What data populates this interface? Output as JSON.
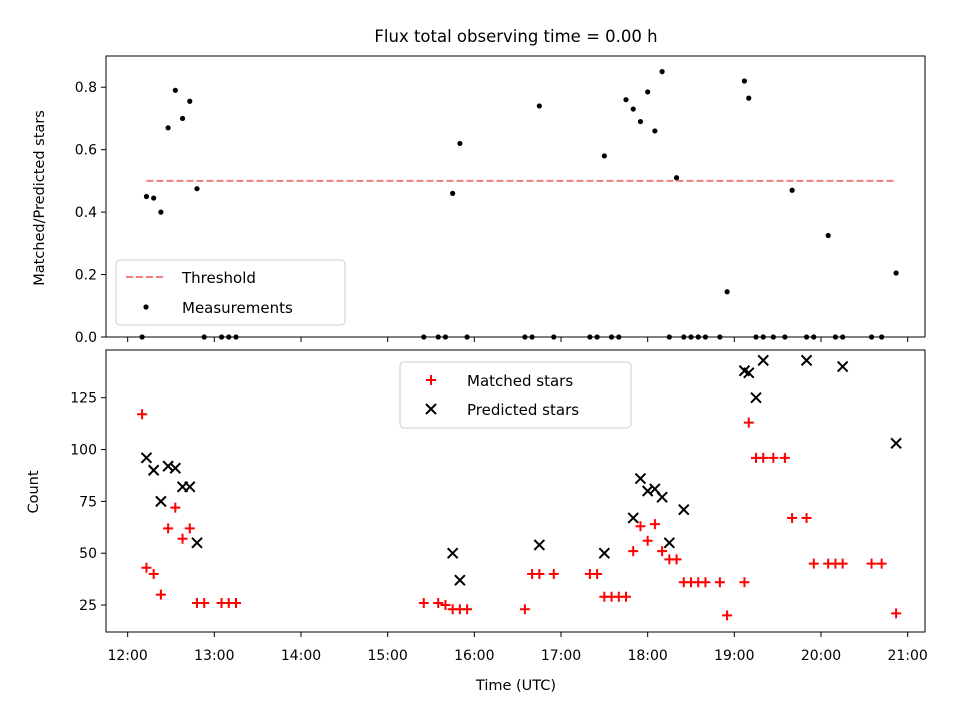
{
  "chart_data": [
    {
      "type": "scatter",
      "title": "Flux total observing time = 0.00 h",
      "xlabel": "",
      "ylabel": "Matched/Predicted stars",
      "xlim": [
        "11:45",
        "21:12"
      ],
      "ylim": [
        0,
        0.9
      ],
      "y_ticks": [
        0.0,
        0.2,
        0.4,
        0.6,
        0.8
      ],
      "y_tick_labels": [
        "0.0",
        "0.2",
        "0.4",
        "0.6",
        "0.8"
      ],
      "x_ticks": [
        "12:00",
        "13:00",
        "14:00",
        "15:00",
        "16:00",
        "17:00",
        "18:00",
        "19:00",
        "20:00",
        "21:00"
      ],
      "legend": {
        "position": "lower-left",
        "entries": [
          "Threshold",
          "Measurements"
        ]
      },
      "threshold": {
        "name": "Threshold",
        "value": 0.5,
        "x_start": "12:13",
        "x_end": "20:52",
        "color": "#f08080"
      },
      "series": [
        {
          "name": "Measurements",
          "color": "#000000",
          "x": [
            "12:10",
            "12:13",
            "12:18",
            "12:23",
            "12:28",
            "12:33",
            "12:38",
            "12:43",
            "12:48",
            "12:53",
            "13:05",
            "13:10",
            "13:15",
            "15:25",
            "15:35",
            "15:40",
            "15:45",
            "15:50",
            "15:55",
            "16:35",
            "16:40",
            "16:45",
            "16:55",
            "17:20",
            "17:25",
            "17:30",
            "17:35",
            "17:40",
            "17:45",
            "17:50",
            "17:55",
            "18:00",
            "18:05",
            "18:10",
            "18:15",
            "18:20",
            "18:25",
            "18:30",
            "18:35",
            "18:40",
            "18:50",
            "18:55",
            "19:07",
            "19:10",
            "19:15",
            "19:20",
            "19:27",
            "19:35",
            "19:40",
            "19:50",
            "19:55",
            "20:05",
            "20:10",
            "20:15",
            "20:35",
            "20:42",
            "20:52"
          ],
          "y": [
            0.0,
            0.45,
            0.445,
            0.4,
            0.67,
            0.79,
            0.7,
            0.755,
            0.475,
            0.0,
            0.0,
            0.0,
            0.0,
            0.0,
            0.0,
            0.0,
            0.46,
            0.62,
            0.0,
            0.0,
            0.0,
            0.74,
            0.0,
            0.0,
            0.0,
            0.58,
            0.0,
            0.0,
            0.76,
            0.73,
            0.69,
            0.785,
            0.66,
            0.85,
            0.0,
            0.51,
            0.0,
            0.0,
            0.0,
            0.0,
            0.0,
            0.145,
            0.82,
            0.765,
            0.0,
            0.0,
            0.0,
            0.0,
            0.47,
            0.0,
            0.0,
            0.325,
            0.0,
            0.0,
            0.0,
            0.0,
            0.205
          ]
        }
      ]
    },
    {
      "type": "scatter",
      "title": "",
      "xlabel": "Time (UTC)",
      "ylabel": "Count",
      "xlim": [
        "11:45",
        "21:12"
      ],
      "ylim": [
        12,
        148
      ],
      "y_ticks": [
        25,
        50,
        75,
        100,
        125
      ],
      "y_tick_labels": [
        "25",
        "50",
        "75",
        "100",
        "125"
      ],
      "x_ticks": [
        "12:00",
        "13:00",
        "14:00",
        "15:00",
        "16:00",
        "17:00",
        "18:00",
        "19:00",
        "20:00",
        "21:00"
      ],
      "x_tick_labels": [
        "12:00",
        "13:00",
        "14:00",
        "15:00",
        "16:00",
        "17:00",
        "18:00",
        "19:00",
        "20:00",
        "21:00"
      ],
      "legend": {
        "position": "upper-center",
        "entries": [
          "Matched stars",
          "Predicted stars"
        ]
      },
      "series": [
        {
          "name": "Matched stars",
          "marker": "+",
          "color": "#ff0000",
          "x": [
            "12:10",
            "12:13",
            "12:18",
            "12:23",
            "12:28",
            "12:33",
            "12:38",
            "12:43",
            "12:48",
            "12:53",
            "13:05",
            "13:10",
            "13:15",
            "15:25",
            "15:35",
            "15:40",
            "15:45",
            "15:50",
            "15:55",
            "16:35",
            "16:40",
            "16:45",
            "16:55",
            "17:20",
            "17:25",
            "17:30",
            "17:35",
            "17:40",
            "17:45",
            "17:50",
            "17:55",
            "18:00",
            "18:05",
            "18:10",
            "18:15",
            "18:20",
            "18:25",
            "18:30",
            "18:35",
            "18:40",
            "18:50",
            "18:55",
            "19:07",
            "19:10",
            "19:15",
            "19:20",
            "19:27",
            "19:35",
            "19:40",
            "19:50",
            "19:55",
            "20:05",
            "20:10",
            "20:15",
            "20:35",
            "20:42",
            "20:52"
          ],
          "y": [
            117,
            43,
            40,
            30,
            62,
            72,
            57,
            62,
            26,
            26,
            26,
            26,
            26,
            26,
            26,
            25,
            23,
            23,
            23,
            23,
            40,
            40,
            40,
            40,
            40,
            29,
            29,
            29,
            29,
            51,
            63,
            56,
            64,
            51,
            47,
            47,
            36,
            36,
            36,
            36,
            36,
            20,
            36,
            113,
            96,
            96,
            96,
            96,
            67,
            67,
            45,
            45,
            45,
            45,
            45,
            45,
            21
          ]
        },
        {
          "name": "Predicted stars",
          "marker": "x",
          "color": "#000000",
          "x": [
            "12:13",
            "12:18",
            "12:23",
            "12:28",
            "12:33",
            "12:38",
            "12:43",
            "12:48",
            "15:45",
            "15:50",
            "16:45",
            "17:30",
            "17:50",
            "17:55",
            "18:00",
            "18:05",
            "18:10",
            "18:15",
            "18:25",
            "19:07",
            "19:10",
            "19:15",
            "19:20",
            "19:50",
            "20:15",
            "20:52"
          ],
          "y": [
            96,
            90,
            75,
            92,
            91,
            82,
            82,
            55,
            50,
            37,
            54,
            50,
            67,
            86,
            80,
            81,
            77,
            55,
            71,
            138,
            137,
            125,
            143,
            143,
            140,
            103
          ]
        }
      ]
    }
  ]
}
